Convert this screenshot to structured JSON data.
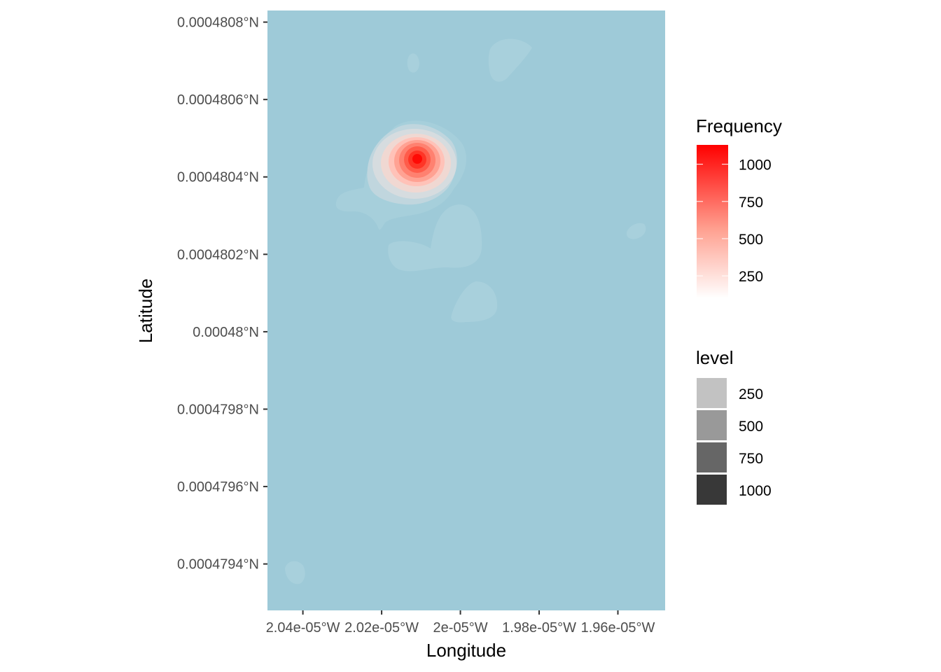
{
  "chart_data": {
    "type": "heatmap",
    "subtype": "2d-density-contour",
    "xlabel": "Longitude",
    "ylabel": "Latitude",
    "x_ticks": [
      {
        "value": -2.04e-05,
        "label": "2.04e-05°W"
      },
      {
        "value": -2.02e-05,
        "label": "2.02e-05°W"
      },
      {
        "value": -2e-05,
        "label": "2e-05°W"
      },
      {
        "value": -1.98e-05,
        "label": "1.98e-05°W"
      },
      {
        "value": -1.96e-05,
        "label": "1.96e-05°W"
      }
    ],
    "y_ticks": [
      {
        "value": 0.0004808,
        "label": "0.0004808°N"
      },
      {
        "value": 0.0004806,
        "label": "0.0004806°N"
      },
      {
        "value": 0.0004804,
        "label": "0.0004804°N"
      },
      {
        "value": 0.0004802,
        "label": "0.0004802°N"
      },
      {
        "value": 0.00048,
        "label": "0.00048°N"
      },
      {
        "value": 0.0004798,
        "label": "0.0004798°N"
      },
      {
        "value": 0.0004796,
        "label": "0.0004796°N"
      },
      {
        "value": 0.0004794,
        "label": "0.0004794°N"
      }
    ],
    "xlim": [
      -2.049e-05,
      -1.948e-05
    ],
    "ylim": [
      0.00047928,
      0.00048083
    ],
    "background_color": "#9ecad8",
    "grid": false,
    "density_peak": {
      "x": -2.01e-05,
      "y": 0.00048043,
      "frequency": 1100
    },
    "low_density_patches": [
      {
        "x": -2.011e-05,
        "y": 0.00048075
      },
      {
        "x": -1.977e-05,
        "y": 0.00048076
      },
      {
        "x": -2e-05,
        "y": 0.00048021
      },
      {
        "x": -1.996e-05,
        "y": 0.00048009
      },
      {
        "x": -1.957e-05,
        "y": 0.00048025
      },
      {
        "x": -2.04e-05,
        "y": 0.00047938
      }
    ],
    "fill_legend": {
      "title": "Frequency",
      "breaks": [
        1000,
        750,
        500,
        250
      ],
      "range": [
        100,
        1130
      ],
      "low_color": "#ffffff",
      "high_color": "#ff0000"
    },
    "alpha_legend": {
      "title": "level",
      "items": [
        {
          "label": "250",
          "color": "#c2c2c2"
        },
        {
          "label": "500",
          "color": "#999999"
        },
        {
          "label": "750",
          "color": "#666666"
        },
        {
          "label": "1000",
          "color": "#383838"
        }
      ]
    },
    "legend_position": "right"
  }
}
